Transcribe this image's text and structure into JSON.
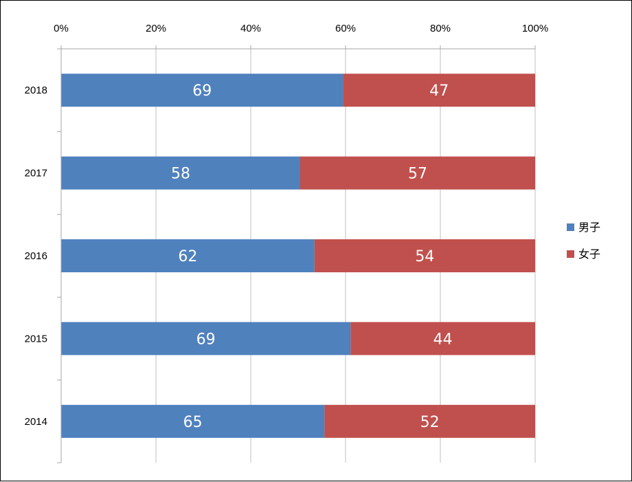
{
  "chart_data": {
    "type": "bar",
    "orientation": "horizontal",
    "stacking": "percent",
    "categories": [
      "2018",
      "2017",
      "2016",
      "2015",
      "2014"
    ],
    "series": [
      {
        "name": "男子",
        "color": "#4F81BD",
        "values": [
          69,
          58,
          62,
          69,
          65
        ]
      },
      {
        "name": "女子",
        "color": "#C0504D",
        "values": [
          47,
          57,
          54,
          44,
          52
        ]
      }
    ],
    "x_ticks": [
      "0%",
      "20%",
      "40%",
      "60%",
      "80%",
      "100%"
    ],
    "xlim": [
      0,
      100
    ],
    "x_axis_position": "top",
    "grid": true,
    "legend": "right",
    "title": "",
    "xlabel": "",
    "ylabel": ""
  }
}
